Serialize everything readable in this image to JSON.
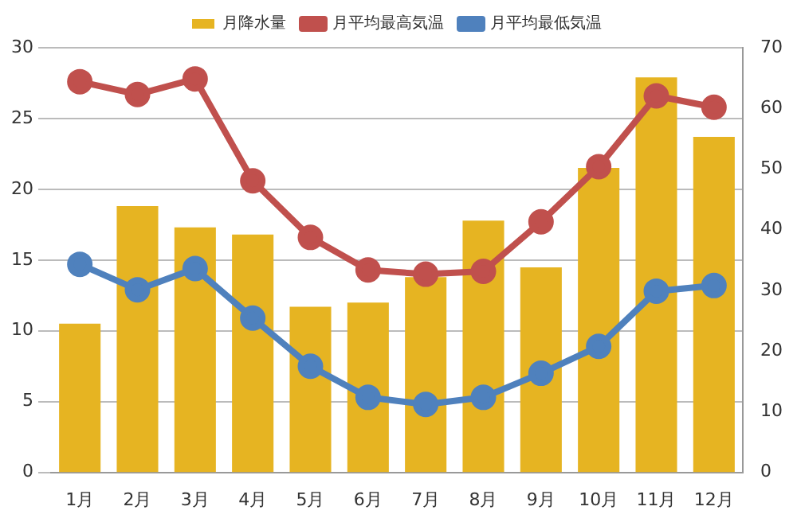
{
  "chart_data": {
    "type": "bar",
    "categories": [
      "1月",
      "2月",
      "3月",
      "4月",
      "5月",
      "6月",
      "7月",
      "8月",
      "9月",
      "10月",
      "11月",
      "12月"
    ],
    "series": [
      {
        "name": "月降水量",
        "axis": "y2",
        "color": "#e6b422",
        "values": [
          24.5,
          43.9,
          40.4,
          39.2,
          27.3,
          28.0,
          32.2,
          41.5,
          33.8,
          50.2,
          65.1,
          55.3
        ]
      },
      {
        "name": "月平均最高気温",
        "type": "line",
        "color": "#c0504d",
        "values": [
          27.6,
          26.7,
          27.8,
          20.6,
          16.6,
          14.3,
          14.0,
          14.2,
          17.7,
          21.6,
          26.6,
          25.8
        ]
      },
      {
        "name": "月平均最低気温",
        "type": "line",
        "color": "#4f81bd",
        "values": [
          14.7,
          12.9,
          14.4,
          10.9,
          7.5,
          5.3,
          4.8,
          5.3,
          7.0,
          8.9,
          12.8,
          13.2
        ]
      }
    ],
    "ylim": [
      0,
      30
    ],
    "yticks": [
      0,
      5,
      10,
      15,
      20,
      25,
      30
    ],
    "y2lim": [
      0,
      70
    ],
    "y2ticks": [
      0,
      10,
      20,
      30,
      40,
      50,
      60,
      70
    ],
    "grid": "y",
    "legend": "top",
    "marker": "circle"
  }
}
